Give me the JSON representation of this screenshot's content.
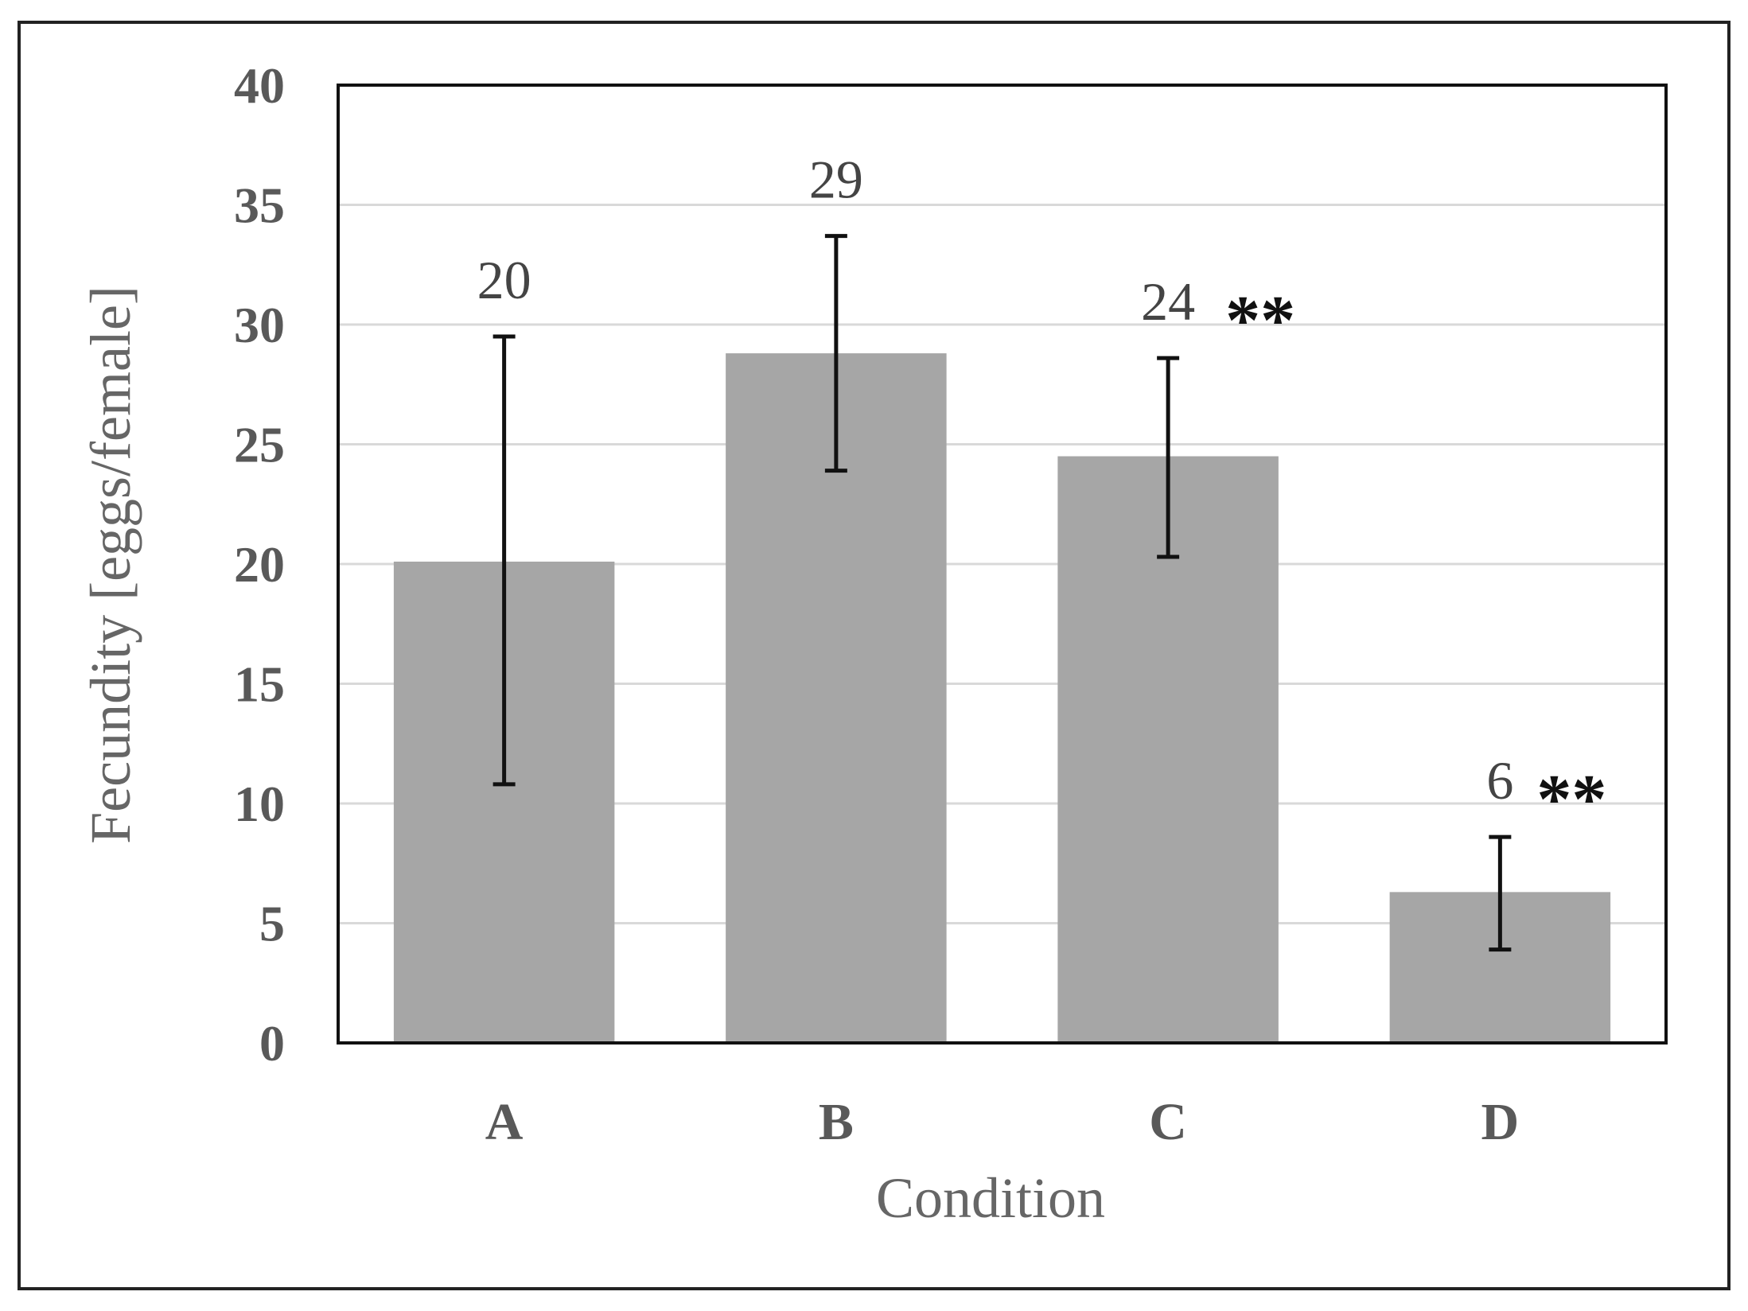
{
  "chart_data": {
    "type": "bar",
    "title": "",
    "xlabel": "Condition",
    "ylabel": "Fecundity [eggs/female]",
    "categories": [
      "A",
      "B",
      "C",
      "D"
    ],
    "values": [
      20.1,
      28.8,
      24.5,
      6.3
    ],
    "error_low": [
      10.8,
      23.9,
      20.3,
      3.9
    ],
    "error_high": [
      29.5,
      33.7,
      28.6,
      8.6
    ],
    "data_labels": [
      "20",
      "29",
      "24",
      "6"
    ],
    "significance": [
      "",
      "",
      "**",
      "**"
    ],
    "ylim": [
      0,
      40
    ],
    "yticks": [
      0,
      5,
      10,
      15,
      20,
      25,
      30,
      35,
      40
    ],
    "ytick_labels": [
      "0",
      "5",
      "10",
      "15",
      "20",
      "25",
      "30",
      "35",
      "40"
    ],
    "grid": true,
    "colors": {
      "bar": "#a6a6a6",
      "error_bar": "#111111",
      "grid": "#d9d9d9",
      "plot_border": "#111111"
    }
  }
}
